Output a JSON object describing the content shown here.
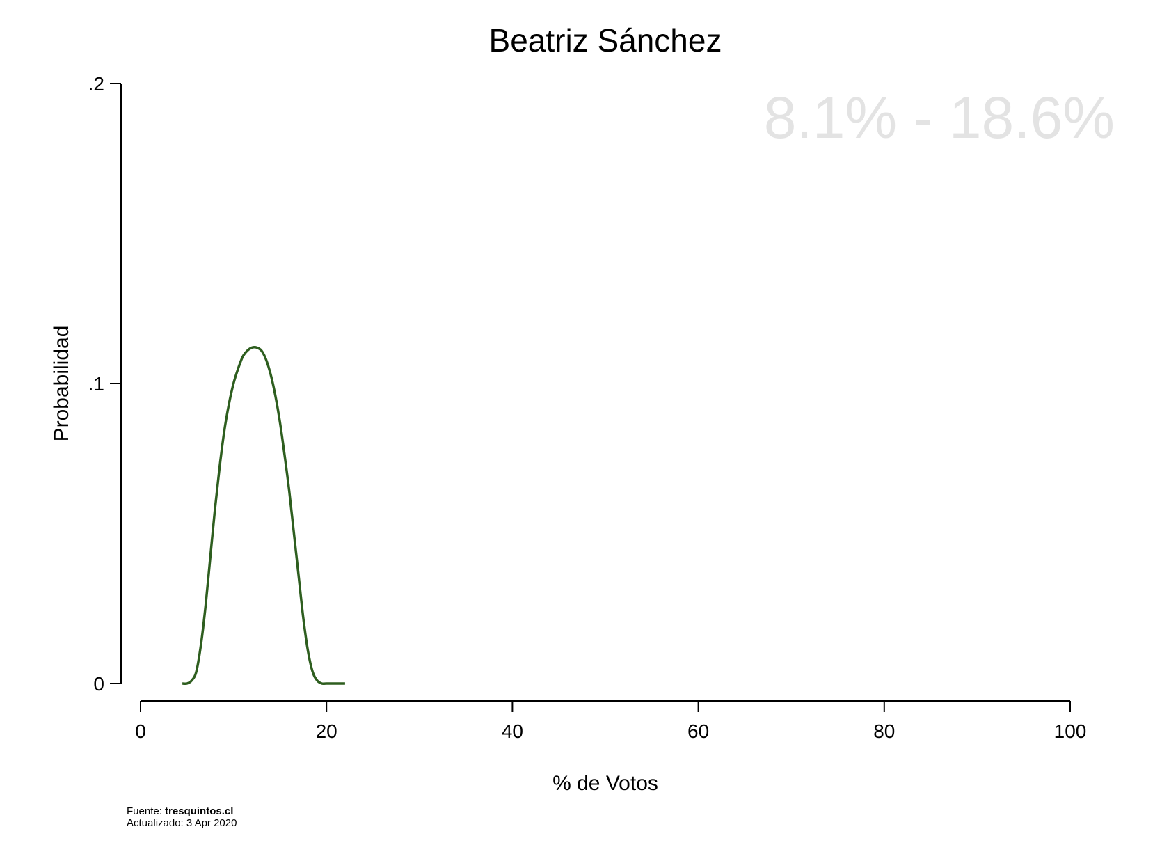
{
  "chart_data": {
    "type": "area",
    "title": "Beatriz Sánchez",
    "xlabel": "% de Votos",
    "ylabel": "Probabilidad",
    "xlim": [
      0,
      100
    ],
    "ylim": [
      0,
      0.2
    ],
    "x_ticks": [
      0,
      20,
      40,
      60,
      80,
      100
    ],
    "x_tick_labels": [
      "0",
      "20",
      "40",
      "60",
      "80",
      "100"
    ],
    "y_ticks": [
      0,
      0.1,
      0.2
    ],
    "y_tick_labels": [
      "0",
      ".1",
      ".2"
    ],
    "range_label": "8.1% - 18.6%",
    "grid": false,
    "series": [
      {
        "color": "#2e5e1f",
        "x": [
          4.5,
          5.0,
          5.5,
          6.0,
          6.5,
          7.0,
          7.5,
          8.0,
          8.5,
          9.0,
          9.5,
          10.0,
          10.5,
          11.0,
          11.5,
          12.0,
          12.5,
          13.0,
          13.5,
          14.0,
          14.5,
          15.0,
          15.5,
          16.0,
          16.5,
          17.0,
          17.5,
          18.0,
          18.5,
          19.0,
          19.5,
          20.0,
          20.5,
          21.0,
          21.5,
          22.0
        ],
        "y": [
          0.0,
          0.0,
          0.001,
          0.004,
          0.013,
          0.026,
          0.042,
          0.058,
          0.072,
          0.084,
          0.093,
          0.1,
          0.105,
          0.109,
          0.111,
          0.112,
          0.112,
          0.111,
          0.108,
          0.103,
          0.096,
          0.087,
          0.076,
          0.064,
          0.05,
          0.036,
          0.022,
          0.011,
          0.004,
          0.001,
          0.0,
          0.0,
          0.0,
          0.0,
          0.0,
          0.0
        ]
      }
    ]
  },
  "footer": {
    "source_prefix": "Fuente: ",
    "source_name": "tresquintos.cl",
    "updated": "Actualizado: 3 Apr 2020"
  }
}
